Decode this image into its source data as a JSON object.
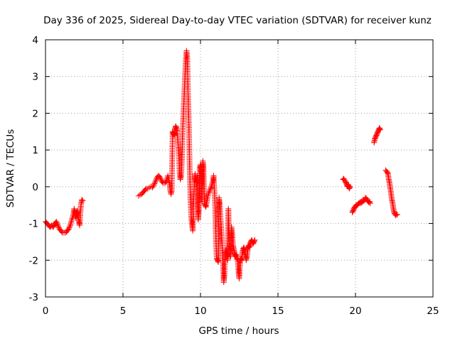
{
  "chart_data": {
    "type": "scatter",
    "title": "Day 336 of 2025, Sidereal Day-to-day VTEC variation (SDTVAR) for receiver kunz",
    "xlabel": "GPS time / hours",
    "ylabel": "SDTVAR / TECUs",
    "xlim": [
      0,
      25
    ],
    "ylim": [
      -3,
      4
    ],
    "xticks": [
      0,
      5,
      10,
      15,
      20,
      25
    ],
    "yticks": [
      -3,
      -2,
      -1,
      0,
      1,
      2,
      3,
      4
    ],
    "xtick_labels": [
      "0",
      "5",
      "10",
      "15",
      "20",
      "25"
    ],
    "ytick_labels": [
      "-3",
      "-2",
      "-1",
      "0",
      "1",
      "2",
      "3",
      "4"
    ],
    "grid": true,
    "marker": "+",
    "color": "#ff0000",
    "series": [
      {
        "name": "SDTVAR",
        "segments": [
          [
            [
              0.0,
              -0.95
            ],
            [
              0.1,
              -1.0
            ],
            [
              0.2,
              -1.05
            ],
            [
              0.3,
              -1.1
            ],
            [
              0.4,
              -1.05
            ],
            [
              0.5,
              -1.1
            ],
            [
              0.6,
              -1.0
            ],
            [
              0.7,
              -0.95
            ],
            [
              0.8,
              -1.05
            ],
            [
              0.9,
              -1.15
            ],
            [
              1.0,
              -1.2
            ],
            [
              1.1,
              -1.25
            ],
            [
              1.2,
              -1.25
            ],
            [
              1.3,
              -1.25
            ],
            [
              1.4,
              -1.2
            ],
            [
              1.5,
              -1.15
            ],
            [
              1.6,
              -1.05
            ],
            [
              1.7,
              -0.9
            ],
            [
              1.8,
              -0.75
            ],
            [
              1.85,
              -0.6
            ],
            [
              1.9,
              -0.7
            ],
            [
              1.95,
              -0.85
            ],
            [
              2.0,
              -0.75
            ],
            [
              2.05,
              -0.65
            ],
            [
              2.1,
              -0.8
            ],
            [
              2.15,
              -0.95
            ],
            [
              2.2,
              -1.05
            ],
            [
              2.25,
              -0.7
            ],
            [
              2.3,
              -0.45
            ],
            [
              2.35,
              -0.35
            ],
            [
              2.4,
              -0.38
            ]
          ],
          [
            [
              6.0,
              -0.25
            ],
            [
              6.1,
              -0.22
            ],
            [
              6.2,
              -0.2
            ],
            [
              6.3,
              -0.15
            ],
            [
              6.4,
              -0.1
            ],
            [
              6.5,
              -0.05
            ],
            [
              6.6,
              -0.05
            ],
            [
              6.7,
              -0.02
            ],
            [
              6.8,
              0.0
            ],
            [
              6.9,
              -0.02
            ],
            [
              7.0,
              0.05
            ],
            [
              7.1,
              0.15
            ],
            [
              7.2,
              0.25
            ],
            [
              7.3,
              0.3
            ],
            [
              7.4,
              0.25
            ],
            [
              7.5,
              0.15
            ],
            [
              7.6,
              0.1
            ],
            [
              7.7,
              0.1
            ],
            [
              7.8,
              0.15
            ],
            [
              7.9,
              0.3
            ],
            [
              8.0,
              0.1
            ],
            [
              8.05,
              -0.1
            ],
            [
              8.1,
              -0.2
            ],
            [
              8.15,
              -0.1
            ],
            [
              8.2,
              1.5
            ],
            [
              8.25,
              1.45
            ],
            [
              8.3,
              1.4
            ],
            [
              8.35,
              1.55
            ],
            [
              8.4,
              1.65
            ],
            [
              8.45,
              1.6
            ],
            [
              8.5,
              1.5
            ],
            [
              8.55,
              1.2
            ],
            [
              8.6,
              0.9
            ],
            [
              8.65,
              0.4
            ],
            [
              8.7,
              0.2
            ],
            [
              8.75,
              0.3
            ],
            [
              8.8,
              0.7
            ],
            [
              8.85,
              1.5
            ],
            [
              8.9,
              2.0
            ],
            [
              8.95,
              2.5
            ],
            [
              9.0,
              3.0
            ],
            [
              9.05,
              3.4
            ],
            [
              9.1,
              3.7
            ],
            [
              9.15,
              3.5
            ],
            [
              9.2,
              2.5
            ],
            [
              9.25,
              1.7
            ],
            [
              9.3,
              0.6
            ],
            [
              9.35,
              -0.3
            ],
            [
              9.4,
              -0.8
            ],
            [
              9.45,
              -1.0
            ],
            [
              9.5,
              -1.2
            ],
            [
              9.55,
              -0.5
            ],
            [
              9.6,
              0.1
            ],
            [
              9.65,
              0.35
            ],
            [
              9.7,
              0.2
            ],
            [
              9.75,
              0.1
            ],
            [
              9.8,
              0.3
            ],
            [
              9.85,
              -0.9
            ],
            [
              9.9,
              -0.65
            ],
            [
              9.95,
              0.5
            ],
            [
              10.0,
              0.6
            ],
            [
              10.05,
              0.35
            ],
            [
              10.1,
              -0.4
            ],
            [
              10.15,
              0.7
            ],
            [
              10.2,
              0.5
            ],
            [
              10.25,
              -0.45
            ],
            [
              10.3,
              -0.5
            ],
            [
              10.35,
              -0.55
            ],
            [
              10.5,
              -0.2
            ],
            [
              10.6,
              -0.1
            ],
            [
              10.7,
              0.0
            ],
            [
              10.8,
              0.15
            ],
            [
              10.85,
              0.3
            ],
            [
              10.9,
              -0.1
            ],
            [
              10.95,
              -0.6
            ],
            [
              11.0,
              -1.5
            ],
            [
              11.05,
              -1.95
            ],
            [
              11.1,
              -2.0
            ],
            [
              11.15,
              -2.05
            ],
            [
              11.2,
              -0.3
            ],
            [
              11.25,
              -0.5
            ],
            [
              11.3,
              -0.9
            ],
            [
              11.35,
              -1.2
            ],
            [
              11.4,
              -1.6
            ],
            [
              11.45,
              -2.1
            ],
            [
              11.5,
              -2.6
            ],
            [
              11.55,
              -2.4
            ],
            [
              11.6,
              -1.8
            ],
            [
              11.65,
              -1.7
            ],
            [
              11.7,
              -1.8
            ],
            [
              11.75,
              -2.0
            ],
            [
              11.8,
              -0.6
            ],
            [
              11.85,
              -1.5
            ],
            [
              11.9,
              -1.7
            ],
            [
              11.95,
              -1.9
            ],
            [
              12.0,
              -1.1
            ],
            [
              12.05,
              -1.3
            ],
            [
              12.1,
              -1.6
            ],
            [
              12.15,
              -1.7
            ],
            [
              12.2,
              -1.8
            ],
            [
              12.25,
              -1.9
            ],
            [
              12.3,
              -1.85
            ],
            [
              12.35,
              -1.95
            ],
            [
              12.4,
              -2.0
            ],
            [
              12.45,
              -2.3
            ],
            [
              12.5,
              -2.5
            ],
            [
              12.55,
              -2.1
            ],
            [
              12.6,
              -1.95
            ],
            [
              12.65,
              -2.0
            ],
            [
              12.7,
              -1.8
            ],
            [
              12.75,
              -1.7
            ],
            [
              12.8,
              -1.65
            ],
            [
              12.85,
              -1.75
            ],
            [
              12.9,
              -1.85
            ],
            [
              12.95,
              -2.0
            ],
            [
              13.0,
              -1.9
            ],
            [
              13.05,
              -1.7
            ],
            [
              13.1,
              -1.6
            ],
            [
              13.15,
              -1.65
            ],
            [
              13.2,
              -1.55
            ],
            [
              13.25,
              -1.5
            ],
            [
              13.3,
              -1.45
            ],
            [
              13.35,
              -1.5
            ],
            [
              13.4,
              -1.55
            ],
            [
              13.45,
              -1.5
            ],
            [
              13.5,
              -1.45
            ]
          ],
          [
            [
              19.2,
              0.2
            ],
            [
              19.25,
              0.22
            ],
            [
              19.3,
              0.18
            ],
            [
              19.35,
              0.15
            ],
            [
              19.4,
              0.1
            ],
            [
              19.45,
              0.05
            ],
            [
              19.5,
              0.0
            ],
            [
              19.55,
              0.05
            ],
            [
              19.6,
              -0.05
            ],
            [
              19.65,
              0.0
            ]
          ],
          [
            [
              19.8,
              -0.7
            ],
            [
              19.85,
              -0.65
            ],
            [
              19.9,
              -0.6
            ],
            [
              19.95,
              -0.55
            ],
            [
              20.0,
              -0.55
            ],
            [
              20.05,
              -0.5
            ],
            [
              20.1,
              -0.5
            ],
            [
              20.15,
              -0.48
            ],
            [
              20.2,
              -0.45
            ],
            [
              20.25,
              -0.45
            ],
            [
              20.3,
              -0.42
            ],
            [
              20.35,
              -0.45
            ],
            [
              20.4,
              -0.4
            ],
            [
              20.45,
              -0.42
            ],
            [
              20.5,
              -0.35
            ],
            [
              20.55,
              -0.38
            ],
            [
              20.6,
              -0.35
            ],
            [
              20.65,
              -0.3
            ],
            [
              20.7,
              -0.32
            ],
            [
              20.75,
              -0.35
            ],
            [
              20.8,
              -0.4
            ],
            [
              20.85,
              -0.42
            ],
            [
              20.9,
              -0.4
            ],
            [
              20.95,
              -0.45
            ]
          ],
          [
            [
              21.2,
              1.2
            ],
            [
              21.25,
              1.3
            ],
            [
              21.3,
              1.35
            ],
            [
              21.35,
              1.4
            ],
            [
              21.4,
              1.45
            ],
            [
              21.45,
              1.5
            ],
            [
              21.5,
              1.55
            ],
            [
              21.55,
              1.6
            ],
            [
              21.6,
              1.55
            ]
          ],
          [
            [
              21.95,
              0.45
            ],
            [
              22.0,
              0.42
            ],
            [
              22.05,
              0.4
            ],
            [
              22.1,
              0.35
            ],
            [
              22.15,
              0.2
            ],
            [
              22.2,
              0.1
            ],
            [
              22.25,
              -0.05
            ],
            [
              22.3,
              -0.2
            ],
            [
              22.35,
              -0.35
            ],
            [
              22.4,
              -0.45
            ],
            [
              22.45,
              -0.6
            ],
            [
              22.5,
              -0.7
            ],
            [
              22.55,
              -0.75
            ],
            [
              22.6,
              -0.78
            ],
            [
              22.65,
              -0.75
            ],
            [
              22.7,
              -0.76
            ]
          ]
        ]
      }
    ]
  }
}
